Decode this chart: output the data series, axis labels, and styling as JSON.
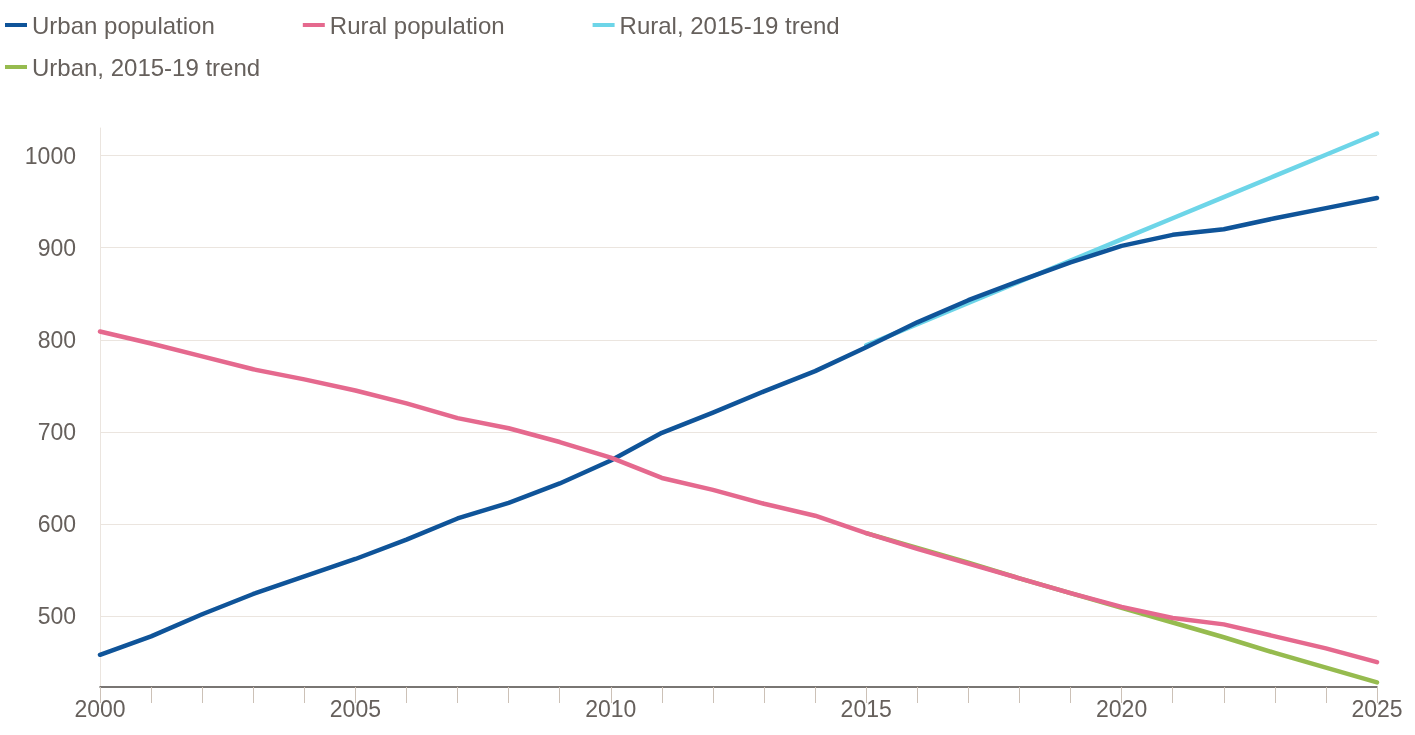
{
  "chart_data": {
    "type": "line",
    "x": [
      2000,
      2001,
      2002,
      2003,
      2004,
      2005,
      2006,
      2007,
      2008,
      2009,
      2010,
      2011,
      2012,
      2013,
      2014,
      2015,
      2016,
      2017,
      2018,
      2019,
      2020,
      2021,
      2022,
      2023,
      2024,
      2025
    ],
    "series": [
      {
        "name": "Urban population",
        "color": "#0f5499",
        "values": [
          458,
          478,
          502,
          524,
          543,
          562,
          583,
          606,
          623,
          644,
          669,
          699,
          721,
          744,
          766,
          792,
          819,
          843,
          864,
          884,
          902,
          914,
          920,
          932,
          943,
          954
        ]
      },
      {
        "name": "Rural population",
        "color": "#e5698e",
        "values": [
          809,
          796,
          782,
          768,
          757,
          745,
          731,
          715,
          704,
          689,
          672,
          650,
          637,
          622,
          609,
          590,
          573,
          557,
          541,
          525,
          510,
          498,
          491,
          478,
          465,
          450
        ]
      },
      {
        "name": "Rural, 2015-19 trend",
        "color": "#6dd5e8",
        "x": [
          2015,
          2016,
          2017,
          2018,
          2019,
          2020,
          2021,
          2022,
          2023,
          2024,
          2025
        ],
        "values": [
          794,
          817,
          840,
          863,
          886,
          909,
          932,
          955,
          978,
          1001,
          1024
        ]
      },
      {
        "name": "Urban, 2015-19 trend",
        "color": "#96bb4f",
        "x": [
          2015,
          2016,
          2017,
          2018,
          2019,
          2020,
          2021,
          2022,
          2023,
          2024,
          2025
        ],
        "values": [
          590,
          574,
          558,
          541,
          525,
          509,
          493,
          477,
          460,
          444,
          428
        ]
      }
    ],
    "xlim": [
      2000,
      2025
    ],
    "xticks": [
      2000,
      {
        "value": 2001,
        "label": null
      },
      {
        "value": 2002,
        "label": null
      },
      {
        "value": 2003,
        "label": null
      },
      {
        "value": 2004,
        "label": null
      },
      2005,
      {
        "value": 2006,
        "label": null
      },
      {
        "value": 2007,
        "label": null
      },
      {
        "value": 2008,
        "label": null
      },
      {
        "value": 2009,
        "label": null
      },
      2010,
      {
        "value": 2011,
        "label": null
      },
      {
        "value": 2012,
        "label": null
      },
      {
        "value": 2013,
        "label": null
      },
      {
        "value": 2014,
        "label": null
      },
      2015,
      {
        "value": 2016,
        "label": null
      },
      {
        "value": 2017,
        "label": null
      },
      {
        "value": 2018,
        "label": null
      },
      {
        "value": 2019,
        "label": null
      },
      2020,
      {
        "value": 2021,
        "label": null
      },
      {
        "value": 2022,
        "label": null
      },
      {
        "value": 2023,
        "label": null
      },
      {
        "value": 2024,
        "label": null
      },
      2025
    ],
    "ylim": [
      423,
      1030
    ],
    "yticks": [
      500,
      600,
      700,
      800,
      900,
      1000
    ],
    "grid": "y",
    "legend": "top left",
    "marker": "none",
    "line_style": "solid"
  }
}
